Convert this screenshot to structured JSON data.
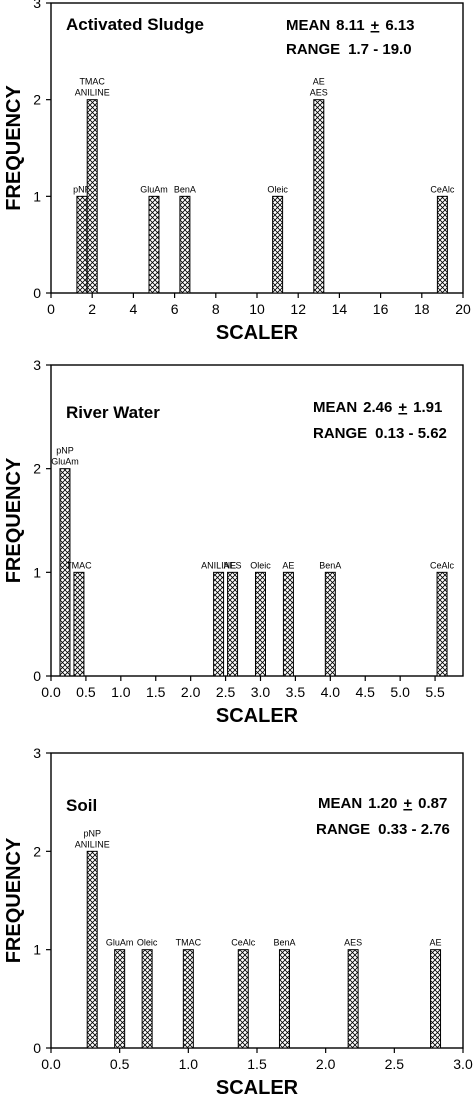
{
  "chart_data": [
    {
      "type": "bar",
      "title": "Activated Sludge",
      "mean_label": "MEAN",
      "mean_value": "8.11",
      "mean_pm": "+",
      "mean_sd": "6.13",
      "range_label": "RANGE",
      "range_value": "1.7 - 19.0",
      "xlabel": "SCALER",
      "ylabel": "FREQUENCY",
      "xlim": [
        0,
        20
      ],
      "ylim": [
        0,
        3
      ],
      "xticks": [
        "0",
        "2",
        "4",
        "6",
        "8",
        "10",
        "12",
        "14",
        "16",
        "18",
        "20"
      ],
      "yticks": [
        "0",
        "1",
        "2",
        "3"
      ],
      "bars": [
        {
          "x": 1.5,
          "value": 1,
          "labels": [
            "pNP"
          ]
        },
        {
          "x": 2.0,
          "value": 2,
          "labels": [
            "TMAC",
            "ANILINE"
          ]
        },
        {
          "x": 5.0,
          "value": 1,
          "labels": [
            "GluAm"
          ]
        },
        {
          "x": 6.5,
          "value": 1,
          "labels": [
            "BenA"
          ]
        },
        {
          "x": 11.0,
          "value": 1,
          "labels": [
            "Oleic"
          ]
        },
        {
          "x": 13.0,
          "value": 2,
          "labels": [
            "AE",
            "AES"
          ]
        },
        {
          "x": 19.0,
          "value": 1,
          "labels": [
            "CeAlc"
          ]
        }
      ]
    },
    {
      "type": "bar",
      "title": "River Water",
      "mean_label": "MEAN",
      "mean_value": "2.46",
      "mean_pm": "+",
      "mean_sd": "1.91",
      "range_label": "RANGE",
      "range_value": "0.13 - 5.62",
      "xlabel": "SCALER",
      "ylabel": "FREQUENCY",
      "xlim": [
        0,
        5.9
      ],
      "ylim": [
        0,
        3
      ],
      "xticks": [
        "0.0",
        "0.5",
        "1.0",
        "1.5",
        "2.0",
        "2.5",
        "3.0",
        "3.5",
        "4.0",
        "4.5",
        "5.0",
        "5.5"
      ],
      "yticks": [
        "0",
        "1",
        "2",
        "3"
      ],
      "bars": [
        {
          "x": 0.2,
          "value": 2,
          "labels": [
            "pNP",
            "GluAm"
          ]
        },
        {
          "x": 0.4,
          "value": 1,
          "labels": [
            "TMAC"
          ]
        },
        {
          "x": 2.4,
          "value": 1,
          "labels": [
            "ANILINE"
          ]
        },
        {
          "x": 2.6,
          "value": 1,
          "labels": [
            "AES"
          ]
        },
        {
          "x": 3.0,
          "value": 1,
          "labels": [
            "Oleic"
          ]
        },
        {
          "x": 3.4,
          "value": 1,
          "labels": [
            "AE"
          ]
        },
        {
          "x": 4.0,
          "value": 1,
          "labels": [
            "BenA"
          ]
        },
        {
          "x": 5.6,
          "value": 1,
          "labels": [
            "CeAlc"
          ]
        }
      ]
    },
    {
      "type": "bar",
      "title": "Soil",
      "mean_label": "MEAN",
      "mean_value": "1.20",
      "mean_pm": "+",
      "mean_sd": "0.87",
      "range_label": "RANGE",
      "range_value": "0.33 - 2.76",
      "xlabel": "SCALER",
      "ylabel": "FREQUENCY",
      "xlim": [
        0,
        3
      ],
      "ylim": [
        0,
        3
      ],
      "xticks": [
        "0.0",
        "0.5",
        "1.0",
        "1.5",
        "2.0",
        "2.5",
        "3.0"
      ],
      "yticks": [
        "0",
        "1",
        "2",
        "3"
      ],
      "bars": [
        {
          "x": 0.3,
          "value": 2,
          "labels": [
            "pNP",
            "ANILINE"
          ]
        },
        {
          "x": 0.5,
          "value": 1,
          "labels": [
            "GluAm"
          ]
        },
        {
          "x": 0.7,
          "value": 1,
          "labels": [
            "Oleic"
          ]
        },
        {
          "x": 1.0,
          "value": 1,
          "labels": [
            "TMAC"
          ]
        },
        {
          "x": 1.4,
          "value": 1,
          "labels": [
            "CeAlc"
          ]
        },
        {
          "x": 1.7,
          "value": 1,
          "labels": [
            "BenA"
          ]
        },
        {
          "x": 2.2,
          "value": 1,
          "labels": [
            "AES"
          ]
        },
        {
          "x": 2.8,
          "value": 1,
          "labels": [
            "AE"
          ]
        }
      ]
    }
  ]
}
